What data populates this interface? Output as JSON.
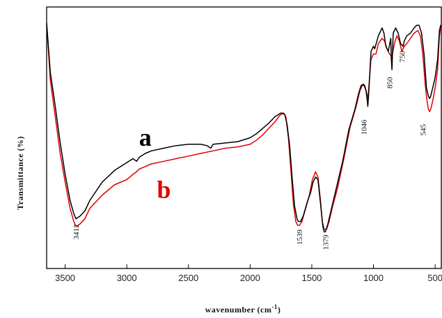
{
  "chart_data": {
    "type": "line",
    "title": "",
    "xlabel": "wavenumber (cm",
    "xlabel_sup": "-1",
    "xlabel_close": ")",
    "ylabel": "Transmittance (%)",
    "xlim": [
      3650,
      450
    ],
    "ylim": [
      0,
      100
    ],
    "x_reversed": true,
    "x_ticks": [
      3500,
      3000,
      2500,
      2000,
      1500,
      1000,
      500
    ],
    "x_tick_labels": [
      "3500",
      "3000",
      "2500",
      "2000",
      "1500",
      "1000",
      "500"
    ],
    "grid": false,
    "series": [
      {
        "name": "a",
        "color": "#000000",
        "points": [
          [
            3650,
            94
          ],
          [
            3620,
            75
          ],
          [
            3580,
            62
          ],
          [
            3540,
            48
          ],
          [
            3500,
            36
          ],
          [
            3460,
            26
          ],
          [
            3430,
            21
          ],
          [
            3412,
            19
          ],
          [
            3380,
            20
          ],
          [
            3340,
            22
          ],
          [
            3300,
            26
          ],
          [
            3200,
            33
          ],
          [
            3100,
            37.5
          ],
          [
            3000,
            40.5
          ],
          [
            2950,
            42
          ],
          [
            2920,
            41
          ],
          [
            2900,
            42.5
          ],
          [
            2850,
            44
          ],
          [
            2800,
            45
          ],
          [
            2700,
            46
          ],
          [
            2600,
            47
          ],
          [
            2500,
            47.5
          ],
          [
            2400,
            47.5
          ],
          [
            2350,
            47
          ],
          [
            2320,
            46
          ],
          [
            2300,
            47.5
          ],
          [
            2200,
            48
          ],
          [
            2100,
            48.5
          ],
          [
            2000,
            50
          ],
          [
            1950,
            51.5
          ],
          [
            1900,
            53.5
          ],
          [
            1850,
            55.5
          ],
          [
            1800,
            58
          ],
          [
            1750,
            59.5
          ],
          [
            1720,
            59
          ],
          [
            1700,
            55
          ],
          [
            1680,
            47
          ],
          [
            1660,
            35
          ],
          [
            1640,
            24
          ],
          [
            1620,
            19
          ],
          [
            1610,
            18
          ],
          [
            1590,
            18
          ],
          [
            1570,
            20
          ],
          [
            1540,
            25
          ],
          [
            1510,
            29
          ],
          [
            1490,
            33
          ],
          [
            1470,
            35
          ],
          [
            1450,
            34
          ],
          [
            1430,
            25
          ],
          [
            1410,
            16
          ],
          [
            1400,
            14
          ],
          [
            1390,
            14
          ],
          [
            1370,
            17
          ],
          [
            1340,
            23
          ],
          [
            1300,
            31
          ],
          [
            1250,
            41
          ],
          [
            1200,
            53
          ],
          [
            1150,
            61
          ],
          [
            1120,
            67
          ],
          [
            1100,
            70
          ],
          [
            1080,
            70.5
          ],
          [
            1060,
            68
          ],
          [
            1050,
            64
          ],
          [
            1046,
            62
          ],
          [
            1040,
            66
          ],
          [
            1020,
            83
          ],
          [
            1000,
            85
          ],
          [
            990,
            84
          ],
          [
            960,
            89
          ],
          [
            930,
            92
          ],
          [
            915,
            90
          ],
          [
            900,
            85
          ],
          [
            880,
            83
          ],
          [
            860,
            88
          ],
          [
            855,
            80
          ],
          [
            850,
            76
          ],
          [
            840,
            90
          ],
          [
            820,
            92
          ],
          [
            800,
            90
          ],
          [
            780,
            86
          ],
          [
            760,
            85
          ],
          [
            750,
            87
          ],
          [
            730,
            89
          ],
          [
            700,
            90
          ],
          [
            670,
            92
          ],
          [
            650,
            93
          ],
          [
            630,
            93
          ],
          [
            610,
            90
          ],
          [
            590,
            82
          ],
          [
            570,
            69
          ],
          [
            555,
            66
          ],
          [
            545,
            65
          ],
          [
            535,
            66
          ],
          [
            520,
            69
          ],
          [
            500,
            73
          ],
          [
            480,
            80
          ],
          [
            465,
            91
          ],
          [
            455,
            93
          ],
          [
            450,
            92
          ]
        ]
      },
      {
        "name": "b",
        "color": "#e00000",
        "points": [
          [
            3650,
            94
          ],
          [
            3620,
            72
          ],
          [
            3580,
            58
          ],
          [
            3540,
            44
          ],
          [
            3500,
            33
          ],
          [
            3460,
            23
          ],
          [
            3430,
            18
          ],
          [
            3412,
            16
          ],
          [
            3380,
            17
          ],
          [
            3340,
            19
          ],
          [
            3300,
            23
          ],
          [
            3200,
            28
          ],
          [
            3100,
            32
          ],
          [
            3000,
            34
          ],
          [
            2950,
            36
          ],
          [
            2920,
            37
          ],
          [
            2900,
            38
          ],
          [
            2850,
            39
          ],
          [
            2800,
            40
          ],
          [
            2700,
            41
          ],
          [
            2600,
            42
          ],
          [
            2500,
            43
          ],
          [
            2400,
            44
          ],
          [
            2300,
            45
          ],
          [
            2200,
            46
          ],
          [
            2100,
            46.5
          ],
          [
            2000,
            47.5
          ],
          [
            1950,
            49
          ],
          [
            1900,
            51
          ],
          [
            1850,
            53.5
          ],
          [
            1800,
            56
          ],
          [
            1760,
            58.5
          ],
          [
            1730,
            59.5
          ],
          [
            1710,
            58
          ],
          [
            1690,
            50
          ],
          [
            1670,
            38
          ],
          [
            1650,
            25
          ],
          [
            1630,
            18
          ],
          [
            1615,
            16.5
          ],
          [
            1600,
            16.5
          ],
          [
            1580,
            18
          ],
          [
            1550,
            23
          ],
          [
            1520,
            28
          ],
          [
            1495,
            34
          ],
          [
            1470,
            37
          ],
          [
            1450,
            35
          ],
          [
            1430,
            26
          ],
          [
            1415,
            18
          ],
          [
            1400,
            15
          ],
          [
            1380,
            15
          ],
          [
            1360,
            18
          ],
          [
            1330,
            24
          ],
          [
            1290,
            31
          ],
          [
            1240,
            42
          ],
          [
            1190,
            54
          ],
          [
            1140,
            62
          ],
          [
            1110,
            68
          ],
          [
            1090,
            70
          ],
          [
            1070,
            70
          ],
          [
            1055,
            67
          ],
          [
            1046,
            65
          ],
          [
            1040,
            68
          ],
          [
            1020,
            80
          ],
          [
            1000,
            82
          ],
          [
            980,
            82
          ],
          [
            960,
            86
          ],
          [
            930,
            88
          ],
          [
            910,
            87
          ],
          [
            890,
            84
          ],
          [
            870,
            82
          ],
          [
            850,
            81
          ],
          [
            830,
            86
          ],
          [
            810,
            89
          ],
          [
            790,
            87
          ],
          [
            770,
            83
          ],
          [
            750,
            85
          ],
          [
            730,
            86
          ],
          [
            700,
            88
          ],
          [
            670,
            90
          ],
          [
            640,
            91
          ],
          [
            620,
            89
          ],
          [
            600,
            82
          ],
          [
            580,
            70
          ],
          [
            565,
            64
          ],
          [
            555,
            61
          ],
          [
            545,
            60
          ],
          [
            535,
            61
          ],
          [
            520,
            64
          ],
          [
            500,
            69
          ],
          [
            480,
            76
          ],
          [
            465,
            89
          ],
          [
            455,
            92
          ],
          [
            450,
            92
          ]
        ]
      }
    ],
    "annotations": [
      {
        "text": "3412",
        "x": 3412,
        "y": 14
      },
      {
        "text": "1539",
        "x": 1600,
        "y": 12
      },
      {
        "text": "1379",
        "x": 1390,
        "y": 10
      },
      {
        "text": "1046",
        "x": 1080,
        "y": 54
      },
      {
        "text": "850",
        "x": 870,
        "y": 71
      },
      {
        "text": "750",
        "x": 770,
        "y": 81
      },
      {
        "text": "545",
        "x": 600,
        "y": 53
      }
    ],
    "series_labels": [
      {
        "text": "a",
        "x": 2850,
        "y": 47,
        "color": "#000000"
      },
      {
        "text": "b",
        "x": 2700,
        "y": 27,
        "color": "#e00000"
      }
    ]
  }
}
